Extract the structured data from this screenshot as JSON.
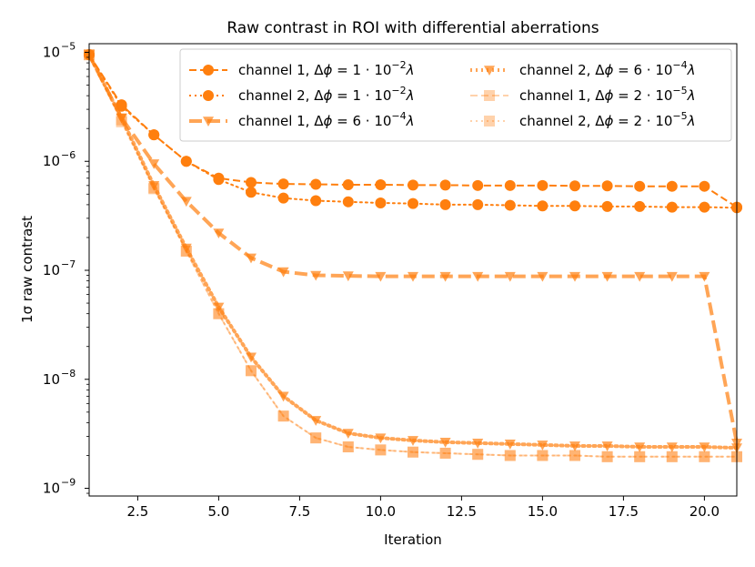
{
  "chart_data": {
    "type": "line",
    "title": "Raw contrast in ROI with differential aberrations",
    "xlabel": "Iteration",
    "ylabel": "1σ raw contrast",
    "xscale": "linear",
    "yscale": "log",
    "xlim": [
      1,
      21
    ],
    "ylim": [
      8.5e-10,
      1.2e-05
    ],
    "x_ticks": [
      2.5,
      5.0,
      7.5,
      10.0,
      12.5,
      15.0,
      17.5,
      20.0
    ],
    "x_tick_labels": [
      "2.5",
      "5.0",
      "7.5",
      "10.0",
      "12.5",
      "15.0",
      "17.5",
      "20.0"
    ],
    "y_ticks": [
      1e-09,
      1e-08,
      1e-07,
      1e-06,
      1e-05
    ],
    "y_tick_labels": [
      {
        "base": "10",
        "exp": "−9"
      },
      {
        "base": "10",
        "exp": "−8"
      },
      {
        "base": "10",
        "exp": "−7"
      },
      {
        "base": "10",
        "exp": "−6"
      },
      {
        "base": "10",
        "exp": "−5"
      }
    ],
    "legend_position": "top-right",
    "x": [
      1,
      2,
      3,
      4,
      5,
      6,
      7,
      8,
      9,
      10,
      11,
      12,
      13,
      14,
      15,
      16,
      17,
      18,
      19,
      20,
      21
    ],
    "series": [
      {
        "name": "channel 1, Δφ = 1·10⁻²λ",
        "legend": {
          "prefix": "channel 1, Δ",
          "phi": "ϕ",
          "mid": " = 1 · 10",
          "exp": "−2",
          "suffix": "λ"
        },
        "color": "#ff7f0e",
        "opacity": 1.0,
        "linestyle": "dashed",
        "marker": "circle",
        "linewidth": 2,
        "values": [
          9.5e-06,
          3.3e-06,
          1.75e-06,
          1e-06,
          7e-07,
          6.4e-07,
          6.2e-07,
          6.15e-07,
          6.1e-07,
          6.1e-07,
          6.05e-07,
          6.05e-07,
          6e-07,
          6e-07,
          6e-07,
          5.95e-07,
          5.95e-07,
          5.9e-07,
          5.9e-07,
          5.9e-07,
          3.8e-07
        ]
      },
      {
        "name": "channel 2, Δφ = 1·10⁻²λ",
        "legend": {
          "prefix": "channel 2, Δ",
          "phi": "ϕ",
          "mid": " = 1 · 10",
          "exp": "−2",
          "suffix": "λ"
        },
        "color": "#ff7f0e",
        "opacity": 1.0,
        "linestyle": "dotted",
        "marker": "circle",
        "linewidth": 2,
        "values": [
          9.5e-06,
          3.2e-06,
          1.75e-06,
          1e-06,
          6.8e-07,
          5.2e-07,
          4.6e-07,
          4.35e-07,
          4.25e-07,
          4.15e-07,
          4.1e-07,
          4e-07,
          4e-07,
          3.95e-07,
          3.9e-07,
          3.9e-07,
          3.85e-07,
          3.85e-07,
          3.8e-07,
          3.8e-07,
          3.75e-07
        ]
      },
      {
        "name": "channel 1, Δφ = 6·10⁻⁴λ",
        "legend": {
          "prefix": "channel 1, Δ",
          "phi": "ϕ",
          "mid": " = 6 · 10",
          "exp": "−4",
          "suffix": "λ"
        },
        "color": "#ff7f0e",
        "opacity": 0.7,
        "linestyle": "dashed",
        "marker": "triangle-down",
        "linewidth": 4,
        "values": [
          9.5e-06,
          2.5e-06,
          9.5e-07,
          4.3e-07,
          2.2e-07,
          1.3e-07,
          9.7e-08,
          9e-08,
          8.9e-08,
          8.8e-08,
          8.8e-08,
          8.8e-08,
          8.8e-08,
          8.8e-08,
          8.8e-08,
          8.8e-08,
          8.8e-08,
          8.8e-08,
          8.8e-08,
          8.8e-08,
          2.6e-09
        ]
      },
      {
        "name": "channel 2, Δφ = 6·10⁻⁴λ",
        "legend": {
          "prefix": "channel 2, Δ",
          "phi": "ϕ",
          "mid": " = 6 · 10",
          "exp": "−4",
          "suffix": "λ"
        },
        "color": "#ff7f0e",
        "opacity": 0.7,
        "linestyle": "dotted",
        "marker": "triangle-down",
        "linewidth": 4,
        "values": [
          9.5e-06,
          2.5e-06,
          6e-07,
          1.6e-07,
          4.6e-08,
          1.6e-08,
          7e-09,
          4.2e-09,
          3.2e-09,
          2.9e-09,
          2.75e-09,
          2.65e-09,
          2.6e-09,
          2.55e-09,
          2.5e-09,
          2.45e-09,
          2.45e-09,
          2.4e-09,
          2.4e-09,
          2.4e-09,
          2.35e-09
        ]
      },
      {
        "name": "channel 1, Δφ = 2·10⁻⁵λ",
        "legend": {
          "prefix": "channel 1, Δ",
          "phi": "ϕ",
          "mid": " = 2 · 10",
          "exp": "−5",
          "suffix": "λ"
        },
        "color": "#ff7f0e",
        "opacity": 0.35,
        "linestyle": "dashed",
        "marker": "square",
        "linewidth": 2,
        "values": [
          9.5e-06,
          2.4e-06,
          5.7e-07,
          1.5e-07,
          4e-08,
          1.2e-08,
          4.6e-09,
          2.9e-09,
          2.4e-09,
          2.25e-09,
          2.15e-09,
          2.1e-09,
          2.05e-09,
          2e-09,
          2e-09,
          2e-09,
          1.95e-09,
          1.95e-09,
          1.95e-09,
          1.95e-09,
          1.95e-09
        ]
      },
      {
        "name": "channel 2, Δφ = 2·10⁻⁵λ",
        "legend": {
          "prefix": "channel 2, Δ",
          "phi": "ϕ",
          "mid": " = 2 · 10",
          "exp": "−5",
          "suffix": "λ"
        },
        "color": "#ff7f0e",
        "opacity": 0.35,
        "linestyle": "dotted",
        "marker": "square",
        "linewidth": 2,
        "values": [
          9.5e-06,
          2.3e-06,
          5.6e-07,
          1.5e-07,
          4e-08,
          1.2e-08,
          4.6e-09,
          2.9e-09,
          2.4e-09,
          2.25e-09,
          2.15e-09,
          2.1e-09,
          2.05e-09,
          2e-09,
          2e-09,
          2e-09,
          1.95e-09,
          1.95e-09,
          1.95e-09,
          1.95e-09,
          1.95e-09
        ]
      }
    ]
  }
}
